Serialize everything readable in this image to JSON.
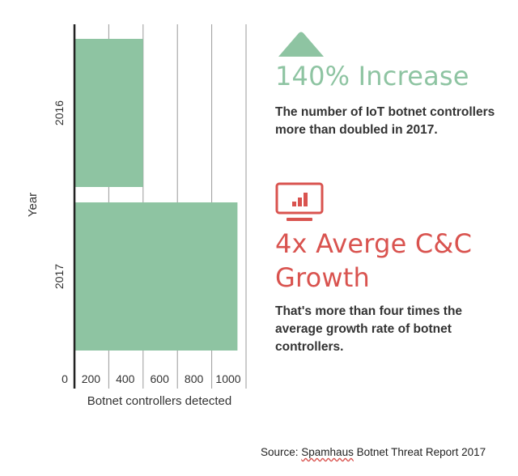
{
  "chart_data": {
    "type": "bar",
    "orientation": "horizontal",
    "categories": [
      "2016",
      "2017"
    ],
    "values": [
      400,
      950
    ],
    "xlabel": "Botnet controllers detected",
    "ylabel": "Year",
    "xlim": [
      0,
      1000
    ],
    "xticks": [
      0,
      200,
      400,
      600,
      800,
      1000
    ],
    "grid": true,
    "bar_color": "#8ec4a2"
  },
  "increase": {
    "title": "140% Increase",
    "description": "The number of IoT botnet controllers more than doubled in 2017.",
    "color": "#8ec4a2",
    "icon": "up-triangle-icon"
  },
  "growth": {
    "title": "4x Averge C&C Growth",
    "description": "That's more than four times the average growth rate of botnet controllers.",
    "color": "#d9534f",
    "icon": "monitor-bar-chart-icon"
  },
  "source": {
    "prefix": "Source: ",
    "name": "Spamhaus",
    "suffix": " Botnet Threat Report 2017"
  }
}
